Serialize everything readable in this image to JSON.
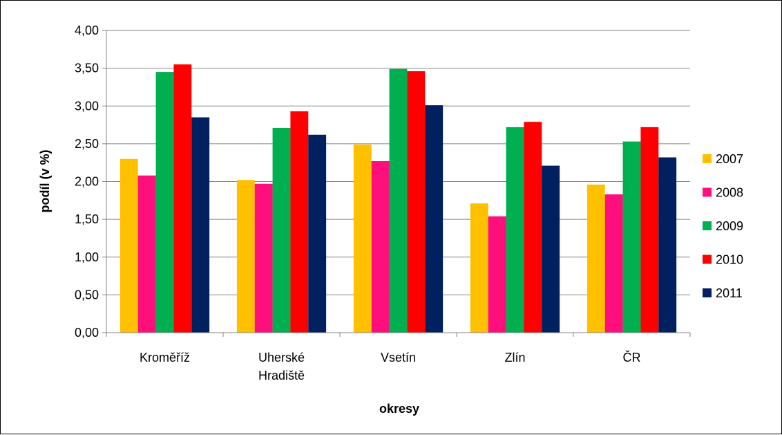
{
  "chart_data": {
    "type": "bar",
    "title": "",
    "xlabel": "okresy",
    "ylabel": "podíl (v %)",
    "categories": [
      [
        "Kroměříž"
      ],
      [
        "Uherské",
        "Hradiště"
      ],
      [
        "Vsetín"
      ],
      [
        "Zlín"
      ],
      [
        "ČR"
      ]
    ],
    "ylim": [
      0,
      4
    ],
    "yticks": [
      "0,00",
      "0,50",
      "1,00",
      "1,50",
      "2,00",
      "2,50",
      "3,00",
      "3,50",
      "4,00"
    ],
    "grid": true,
    "legend_position": "right",
    "series": [
      {
        "name": "2007",
        "color": "#FFC000",
        "values": [
          2.3,
          2.02,
          2.49,
          1.71,
          1.96
        ]
      },
      {
        "name": "2008",
        "color": "#FF0F7B",
        "values": [
          2.08,
          1.97,
          2.27,
          1.54,
          1.83
        ]
      },
      {
        "name": "2009",
        "color": "#00B050",
        "values": [
          3.45,
          2.71,
          3.49,
          2.72,
          2.53
        ]
      },
      {
        "name": "2010",
        "color": "#FF0000",
        "values": [
          3.55,
          2.93,
          3.46,
          2.79,
          2.72
        ]
      },
      {
        "name": "2011",
        "color": "#002060",
        "values": [
          2.85,
          2.62,
          3.01,
          2.21,
          2.32
        ]
      }
    ]
  }
}
